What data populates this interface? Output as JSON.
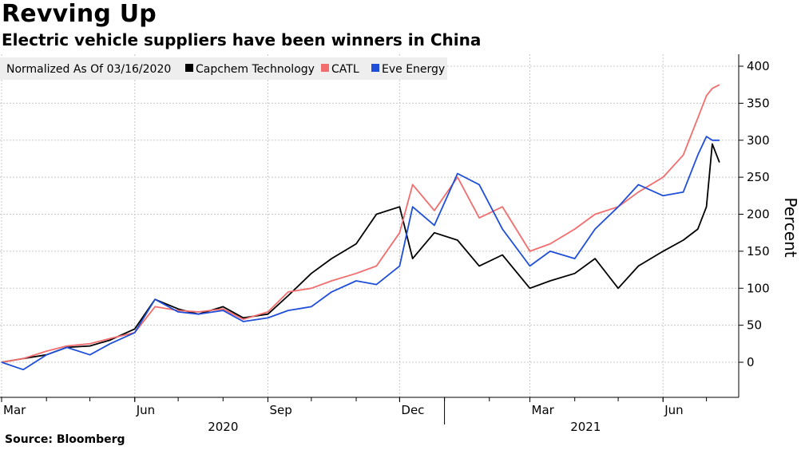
{
  "header": {
    "title": "Revving Up",
    "subtitle": "Electric vehicle suppliers have been winners in China"
  },
  "footer": {
    "source": "Source: Bloomberg"
  },
  "chart_data": {
    "type": "line",
    "legend_title": "Normalized As Of 03/16/2020",
    "ylabel": "Percent",
    "ylim": [
      -50,
      400
    ],
    "yticks": [
      0,
      50,
      100,
      150,
      200,
      250,
      300,
      350,
      400
    ],
    "x_tick_labels": [
      "Mar",
      "Jun",
      "Sep",
      "Dec",
      "Mar",
      "Jun"
    ],
    "x_year_labels": [
      "2020",
      "2021"
    ],
    "x_range": [
      "2020-03-01",
      "2021-07-15"
    ],
    "grid": true,
    "legend_position": "top-left",
    "series": [
      {
        "name": "Capchem Technology",
        "color": "#000000",
        "x": [
          "2020-03-01",
          "2020-03-16",
          "2020-04-01",
          "2020-04-15",
          "2020-05-01",
          "2020-05-15",
          "2020-06-01",
          "2020-06-15",
          "2020-07-01",
          "2020-07-15",
          "2020-08-01",
          "2020-08-15",
          "2020-09-01",
          "2020-09-15",
          "2020-10-01",
          "2020-10-15",
          "2020-11-01",
          "2020-11-15",
          "2020-12-01",
          "2020-12-10",
          "2020-12-25",
          "2021-01-10",
          "2021-01-25",
          "2021-02-10",
          "2021-03-01",
          "2021-03-15",
          "2021-04-01",
          "2021-04-15",
          "2021-05-01",
          "2021-05-15",
          "2021-06-01",
          "2021-06-15",
          "2021-06-25",
          "2021-07-01",
          "2021-07-05",
          "2021-07-10"
        ],
        "y": [
          0,
          5,
          10,
          20,
          22,
          30,
          45,
          85,
          72,
          65,
          75,
          60,
          65,
          90,
          120,
          140,
          160,
          200,
          210,
          140,
          175,
          165,
          130,
          145,
          100,
          110,
          120,
          140,
          100,
          130,
          150,
          165,
          180,
          210,
          295,
          270
        ]
      },
      {
        "name": "CATL",
        "color": "#f26d6d",
        "x": [
          "2020-03-01",
          "2020-03-16",
          "2020-04-01",
          "2020-04-15",
          "2020-05-01",
          "2020-05-15",
          "2020-06-01",
          "2020-06-15",
          "2020-07-01",
          "2020-07-15",
          "2020-08-01",
          "2020-08-15",
          "2020-09-01",
          "2020-09-15",
          "2020-10-01",
          "2020-10-15",
          "2020-11-01",
          "2020-11-15",
          "2020-12-01",
          "2020-12-10",
          "2020-12-25",
          "2021-01-10",
          "2021-01-25",
          "2021-02-10",
          "2021-03-01",
          "2021-03-15",
          "2021-04-01",
          "2021-04-15",
          "2021-05-01",
          "2021-05-15",
          "2021-06-01",
          "2021-06-15",
          "2021-06-25",
          "2021-07-01",
          "2021-07-05",
          "2021-07-10"
        ],
        "y": [
          0,
          5,
          15,
          22,
          25,
          32,
          40,
          75,
          70,
          68,
          72,
          58,
          68,
          95,
          100,
          110,
          120,
          130,
          175,
          240,
          205,
          250,
          195,
          210,
          150,
          160,
          180,
          200,
          210,
          230,
          250,
          280,
          330,
          360,
          370,
          375
        ]
      },
      {
        "name": "Eve Energy",
        "color": "#1f4ed8",
        "x": [
          "2020-03-01",
          "2020-03-16",
          "2020-04-01",
          "2020-04-15",
          "2020-05-01",
          "2020-05-15",
          "2020-06-01",
          "2020-06-15",
          "2020-07-01",
          "2020-07-15",
          "2020-08-01",
          "2020-08-15",
          "2020-09-01",
          "2020-09-15",
          "2020-10-01",
          "2020-10-15",
          "2020-11-01",
          "2020-11-15",
          "2020-12-01",
          "2020-12-10",
          "2020-12-25",
          "2021-01-10",
          "2021-01-25",
          "2021-02-10",
          "2021-03-01",
          "2021-03-15",
          "2021-04-01",
          "2021-04-15",
          "2021-05-01",
          "2021-05-15",
          "2021-06-01",
          "2021-06-15",
          "2021-06-25",
          "2021-07-01",
          "2021-07-05",
          "2021-07-10"
        ],
        "y": [
          0,
          -10,
          10,
          20,
          10,
          25,
          40,
          85,
          68,
          65,
          70,
          55,
          60,
          70,
          75,
          95,
          110,
          105,
          130,
          210,
          185,
          255,
          240,
          180,
          130,
          150,
          140,
          180,
          210,
          240,
          225,
          230,
          280,
          305,
          300,
          300
        ]
      }
    ]
  }
}
